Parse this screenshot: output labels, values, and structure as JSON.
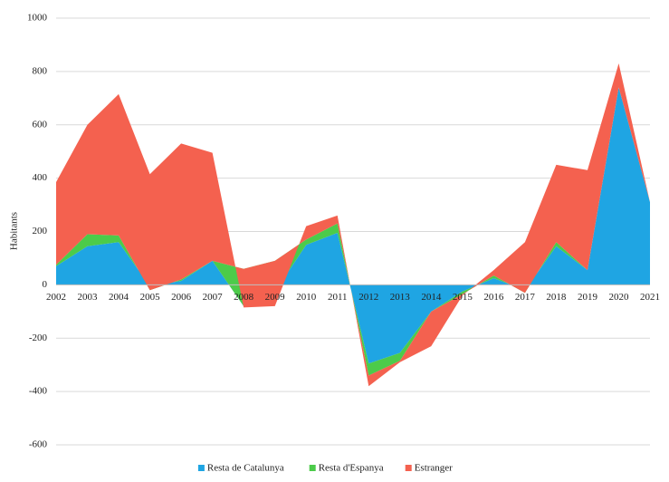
{
  "chart_data": {
    "type": "stacked_area",
    "categories": [
      "2002",
      "2003",
      "2004",
      "2005",
      "2006",
      "2007",
      "2008",
      "2009",
      "2010",
      "2011",
      "2012",
      "2013",
      "2014",
      "2015",
      "2016",
      "2017",
      "2018",
      "2019",
      "2020",
      "2021"
    ],
    "series": [
      {
        "name": "Resta de Catalunya",
        "color": "#1fa5e3",
        "values": [
          70,
          145,
          160,
          -5,
          15,
          90,
          -80,
          -25,
          150,
          195,
          -295,
          -255,
          -100,
          -25,
          25,
          -20,
          145,
          55,
          740,
          310
        ]
      },
      {
        "name": "Resta d'Espanya",
        "color": "#4ccb4a",
        "values": [
          5,
          45,
          25,
          -15,
          5,
          0,
          140,
          115,
          20,
          35,
          -45,
          -30,
          0,
          -10,
          10,
          -10,
          15,
          0,
          0,
          0
        ]
      },
      {
        "name": "Estranger",
        "color": "#f4614f",
        "values": [
          310,
          410,
          530,
          435,
          510,
          405,
          -145,
          -170,
          50,
          30,
          -40,
          -5,
          -130,
          -5,
          20,
          190,
          290,
          375,
          90,
          0
        ]
      }
    ],
    "y_label": "Habitants",
    "ylim": [
      -600,
      1000
    ],
    "yticks": [
      -600,
      -400,
      -200,
      0,
      200,
      400,
      600,
      800,
      1000
    ],
    "grid": true,
    "legend": "bottom"
  }
}
